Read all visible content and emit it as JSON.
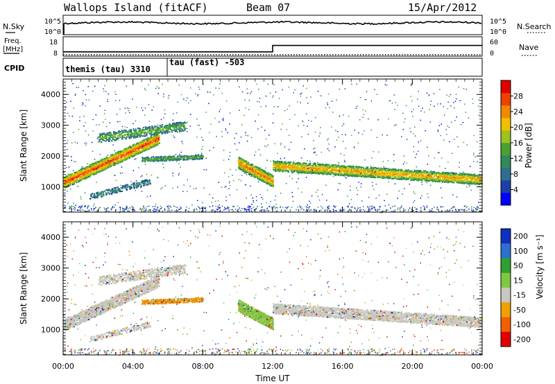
{
  "header": {
    "station": "Wallops Island (fitACF)",
    "beam": "Beam 07",
    "date": "15/Apr/2012"
  },
  "strip_panels": {
    "nsky_label": "N.Sky",
    "nsky_ticks": [
      "10^5",
      "10^0"
    ],
    "nsearch_label": "N.Search",
    "nsearch_ticks": [
      "10^5",
      "10^0"
    ],
    "freq_label": [
      "Freq.",
      "[MHz]"
    ],
    "freq_ticks": [
      "18",
      "8"
    ],
    "nave_label": "Nave",
    "nave_ticks": [
      "60",
      "0"
    ],
    "cpid_label": "CPID",
    "cpid_segments": [
      {
        "label": "themis (tau) 3310",
        "start_hour": 0,
        "end_hour": 6
      },
      {
        "label": "tau (fast) -503",
        "start_hour": 6,
        "end_hour": 24
      }
    ],
    "freq_steps": [
      {
        "start_hour": 0,
        "end_hour": 12,
        "freq_mhz": 10.2
      },
      {
        "start_hour": 12,
        "end_hour": 24,
        "freq_mhz": 13.5
      }
    ]
  },
  "chart_data": [
    {
      "type": "heatmap",
      "name": "power",
      "ylabel": "Slant Range [km]",
      "ylim": [
        180,
        4500
      ],
      "y_ticks": [
        "1000",
        "2000",
        "3000",
        "4000"
      ],
      "xlim_hours": [
        0,
        24
      ],
      "colorbar_label": "Power [dB]",
      "colorbar_ticks": [
        "4",
        "8",
        "12",
        "16",
        "20",
        "24",
        "28"
      ],
      "colorbar_range": [
        0,
        32
      ],
      "colors": [
        "#0000ff",
        "#1e3fa8",
        "#2e6f8f",
        "#2f8a5a",
        "#4aa030",
        "#9cc21e",
        "#f0c000",
        "#f08a00",
        "#f04000",
        "#e00000"
      ],
      "features": [
        {
          "label": "",
          "start_hour": 0,
          "end_hour": 5.5,
          "range_start_km": 1150,
          "range_end_km": 2600,
          "power_db": 28
        },
        {
          "label": "",
          "start_hour": 10,
          "end_hour": 12,
          "range_start_km": 1800,
          "range_end_km": 1200,
          "power_db": 26
        },
        {
          "label": "",
          "start_hour": 12,
          "end_hour": 24,
          "range_start_km": 1700,
          "range_end_km": 1250,
          "power_db": 24
        }
      ]
    },
    {
      "type": "heatmap",
      "name": "velocity",
      "ylabel": "Slant Range [km]",
      "ylim": [
        180,
        4500
      ],
      "y_ticks": [
        "1000",
        "2000",
        "3000",
        "4000"
      ],
      "xlabel": "Time UT",
      "x_ticks": [
        "00:00",
        "04:00",
        "08:00",
        "12:00",
        "16:00",
        "20:00",
        "00:00"
      ],
      "colorbar_label": "Velocity [m s⁻¹]",
      "colorbar_ticks": [
        "200",
        "100",
        "50",
        "15",
        "-15",
        "-50",
        "-100",
        "-200"
      ],
      "colors": [
        "#1030c0",
        "#2e70d0",
        "#30a030",
        "#80c840",
        "#c8c8c0",
        "#f0a000",
        "#f06000",
        "#e00000"
      ]
    }
  ]
}
